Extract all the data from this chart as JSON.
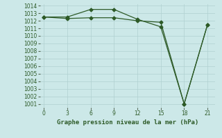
{
  "x": [
    0,
    3,
    6,
    9,
    12,
    15,
    18,
    21
  ],
  "line1": [
    1012.5,
    1012.5,
    1013.5,
    1013.5,
    1012.2,
    1011.2,
    1001.0,
    1011.5
  ],
  "line2": [
    1012.5,
    1012.3,
    1012.4,
    1012.4,
    1012.0,
    1011.8,
    1001.0,
    1011.5
  ],
  "line_color": "#2d5a27",
  "marker": "D",
  "marker_size": 2.5,
  "xlim": [
    -0.5,
    22
  ],
  "ylim": [
    1000.5,
    1014.2
  ],
  "xticks": [
    0,
    3,
    6,
    9,
    12,
    15,
    18,
    21
  ],
  "yticks": [
    1001,
    1002,
    1003,
    1004,
    1005,
    1006,
    1007,
    1008,
    1009,
    1010,
    1011,
    1012,
    1013,
    1014
  ],
  "xlabel": "Graphe pression niveau de la mer (hPa)",
  "background_color": "#cce8e8",
  "grid_color": "#b0d0d0",
  "tick_fontsize": 5.5,
  "label_fontsize": 6.5
}
